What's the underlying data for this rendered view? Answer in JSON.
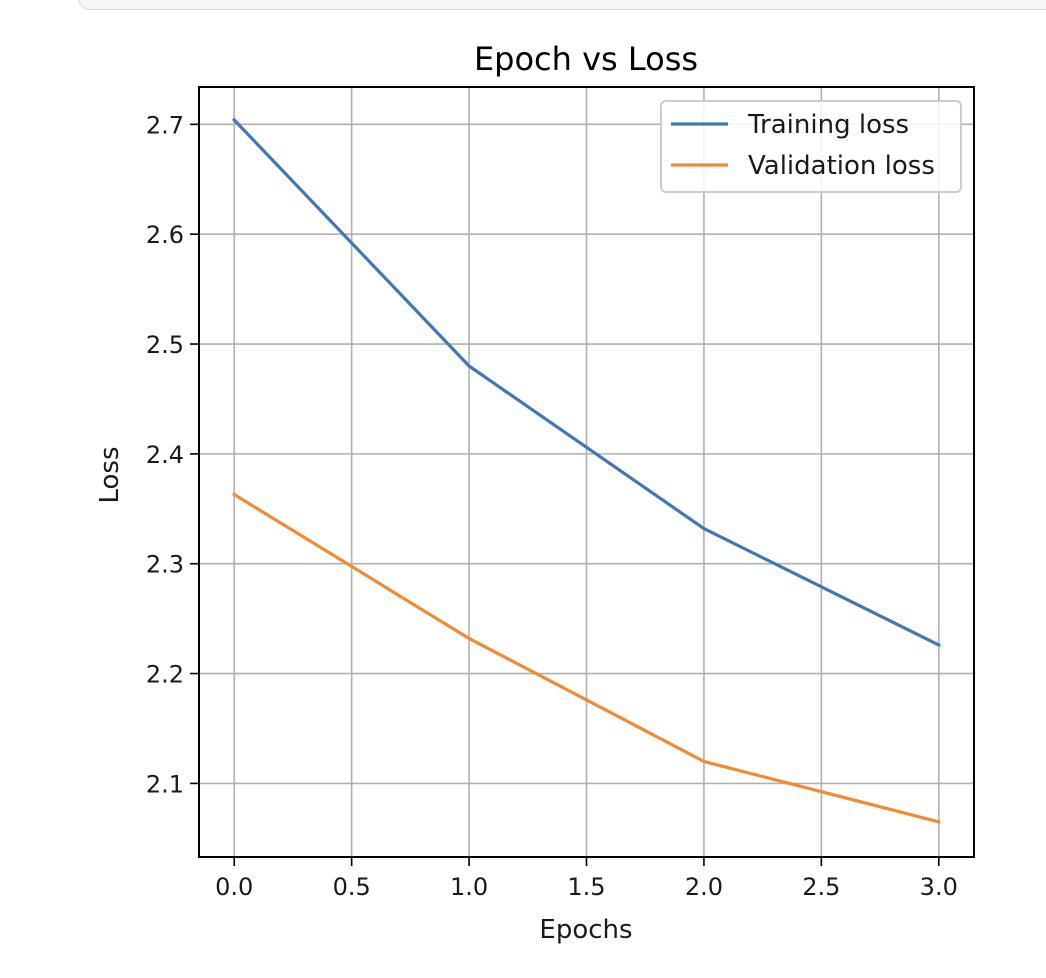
{
  "chart_data": {
    "type": "line",
    "title": "Epoch vs Loss",
    "xlabel": "Epochs",
    "ylabel": "Loss",
    "x": [
      0,
      1,
      2,
      3
    ],
    "xlim": [
      -0.15,
      3.15
    ],
    "ylim": [
      2.033,
      2.734
    ],
    "xticks": [
      0.0,
      0.5,
      1.0,
      1.5,
      2.0,
      2.5,
      3.0
    ],
    "xtick_labels": [
      "0.0",
      "0.5",
      "1.0",
      "1.5",
      "2.0",
      "2.5",
      "3.0"
    ],
    "yticks": [
      2.1,
      2.2,
      2.3,
      2.4,
      2.5,
      2.6,
      2.7
    ],
    "ytick_labels": [
      "2.1",
      "2.2",
      "2.3",
      "2.4",
      "2.5",
      "2.6",
      "2.7"
    ],
    "grid": true,
    "legend_position": "top-right",
    "series": [
      {
        "name": "Training loss",
        "color": "#3f78b5",
        "values": [
          2.704,
          2.48,
          2.332,
          2.226
        ]
      },
      {
        "name": "Validation loss",
        "color": "#f08a33",
        "values": [
          2.363,
          2.232,
          2.12,
          2.065
        ]
      }
    ]
  }
}
